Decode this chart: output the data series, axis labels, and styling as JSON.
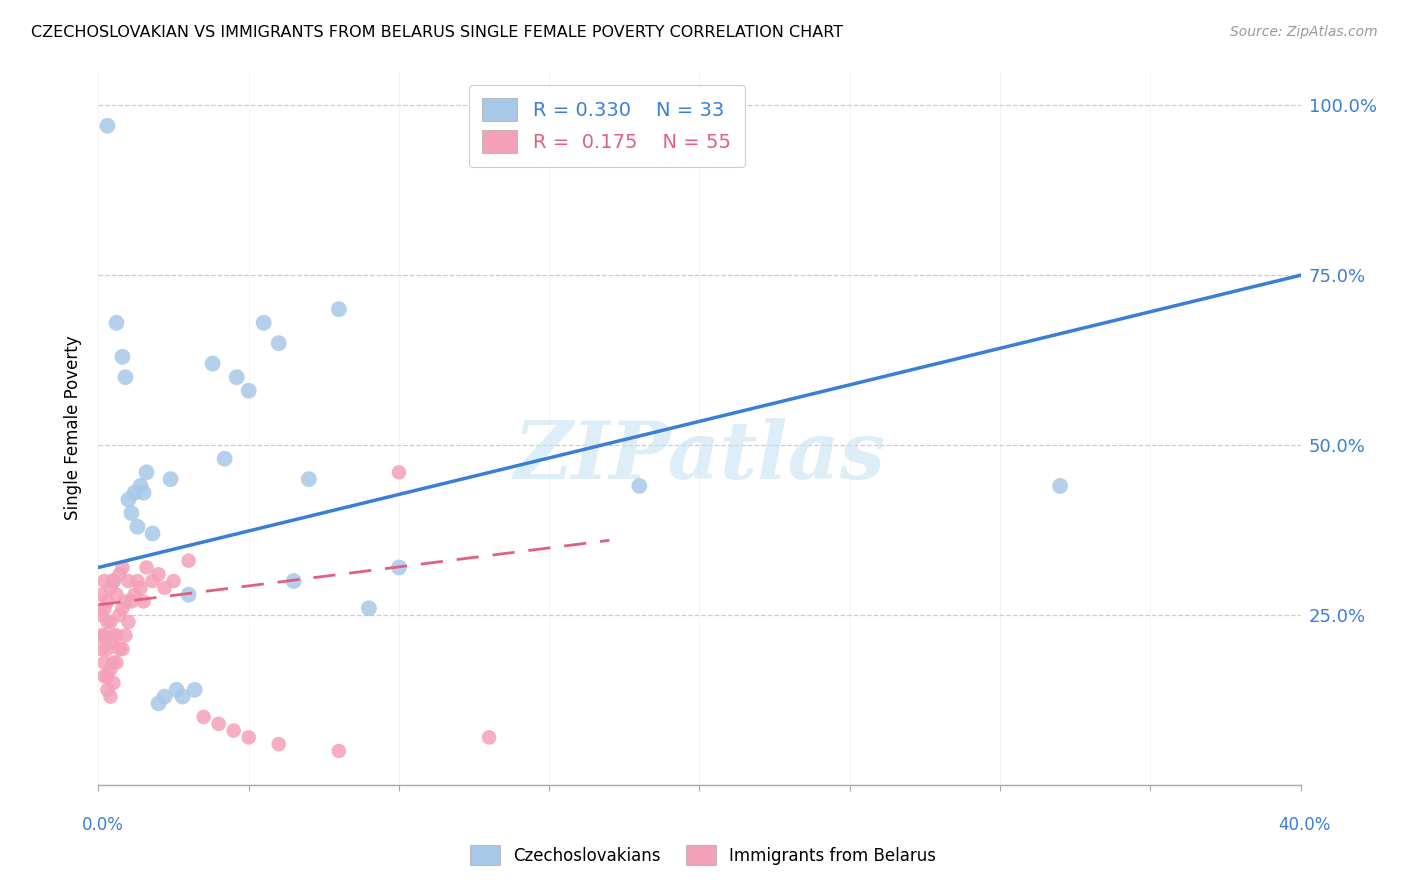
{
  "title": "CZECHOSLOVAKIAN VS IMMIGRANTS FROM BELARUS SINGLE FEMALE POVERTY CORRELATION CHART",
  "source": "Source: ZipAtlas.com",
  "ylabel": "Single Female Poverty",
  "yrange": [
    0.0,
    1.05
  ],
  "xrange": [
    0.0,
    0.4
  ],
  "legend_r1": "R = 0.330",
  "legend_n1": "N = 33",
  "legend_r2": "R = 0.175",
  "legend_n2": "N = 55",
  "watermark": "ZIPatlas",
  "blue_color": "#a8c8e8",
  "pink_color": "#f4a0b8",
  "line_blue": "#3a7fd5",
  "line_pink": "#e06080",
  "czech_x": [
    0.003,
    0.006,
    0.008,
    0.009,
    0.01,
    0.011,
    0.012,
    0.013,
    0.014,
    0.015,
    0.016,
    0.018,
    0.02,
    0.022,
    0.024,
    0.026,
    0.028,
    0.03,
    0.032,
    0.038,
    0.042,
    0.046,
    0.05,
    0.055,
    0.06,
    0.065,
    0.07,
    0.08,
    0.09,
    0.1,
    0.18,
    0.32,
    0.005
  ],
  "czech_y": [
    0.97,
    0.68,
    0.63,
    0.6,
    0.42,
    0.4,
    0.43,
    0.38,
    0.44,
    0.43,
    0.46,
    0.37,
    0.12,
    0.13,
    0.45,
    0.14,
    0.13,
    0.28,
    0.14,
    0.62,
    0.48,
    0.6,
    0.58,
    0.68,
    0.65,
    0.3,
    0.45,
    0.7,
    0.26,
    0.32,
    0.44,
    0.44,
    0.3
  ],
  "belarus_x": [
    0.001,
    0.001,
    0.001,
    0.001,
    0.002,
    0.002,
    0.002,
    0.002,
    0.002,
    0.003,
    0.003,
    0.003,
    0.003,
    0.003,
    0.004,
    0.004,
    0.004,
    0.004,
    0.004,
    0.005,
    0.005,
    0.005,
    0.005,
    0.006,
    0.006,
    0.006,
    0.007,
    0.007,
    0.007,
    0.008,
    0.008,
    0.008,
    0.009,
    0.009,
    0.01,
    0.01,
    0.011,
    0.012,
    0.013,
    0.014,
    0.015,
    0.016,
    0.018,
    0.02,
    0.022,
    0.025,
    0.03,
    0.035,
    0.04,
    0.045,
    0.05,
    0.06,
    0.08,
    0.1,
    0.13
  ],
  "belarus_y": [
    0.2,
    0.22,
    0.25,
    0.28,
    0.16,
    0.18,
    0.22,
    0.26,
    0.3,
    0.14,
    0.16,
    0.2,
    0.24,
    0.27,
    0.13,
    0.17,
    0.21,
    0.24,
    0.29,
    0.15,
    0.18,
    0.22,
    0.3,
    0.18,
    0.22,
    0.28,
    0.2,
    0.25,
    0.31,
    0.2,
    0.26,
    0.32,
    0.22,
    0.27,
    0.24,
    0.3,
    0.27,
    0.28,
    0.3,
    0.29,
    0.27,
    0.32,
    0.3,
    0.31,
    0.29,
    0.3,
    0.33,
    0.1,
    0.09,
    0.08,
    0.07,
    0.06,
    0.05,
    0.46,
    0.07
  ],
  "blue_line_x0": 0.0,
  "blue_line_y0": 0.32,
  "blue_line_x1": 0.4,
  "blue_line_y1": 0.75,
  "pink_line_x0": 0.0,
  "pink_line_y0": 0.265,
  "pink_line_x1": 0.17,
  "pink_line_y1": 0.36
}
